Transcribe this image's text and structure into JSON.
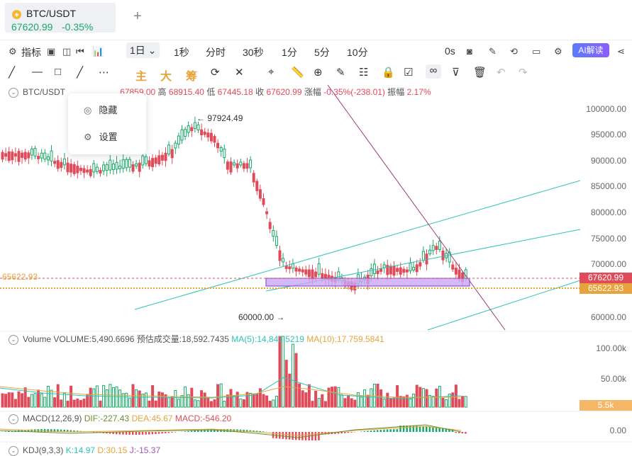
{
  "tab": {
    "symbol": "BTC/USDT",
    "price": "67620.99",
    "change": "-0.35%",
    "coin_glyph": "◈"
  },
  "toolbar": {
    "indicators": "指标",
    "interval_selected": "1日",
    "intervals": [
      "1秒",
      "分时",
      "30秒",
      "1分",
      "5分",
      "10分"
    ],
    "countdown": "0s",
    "ai_button": "AI解读"
  },
  "draw": {
    "main": "主",
    "big": "大",
    "chips": "筹"
  },
  "legend": {
    "symbol": "BTC/USDT",
    "open": "67859.00",
    "high_label": "高",
    "high": "68915.40",
    "low_label": "低",
    "low": "67445.18",
    "close_label": "收",
    "close": "67620.99",
    "chg_label": "涨幅",
    "chg": "-0.35%(-238.01)",
    "amp_label": "振幅",
    "amp": "2.17%"
  },
  "menu": {
    "hide": "隐藏",
    "settings": "设置"
  },
  "annotations": {
    "high_mark": "97924.49",
    "low_mark": "60000.00",
    "line_left": "65622.93"
  },
  "yaxis": {
    "labels": [
      "100000.00",
      "95000.00",
      "90000.00",
      "85000.00",
      "80000.00",
      "75000.00",
      "70000.00",
      "60000.00"
    ],
    "price_tag": "67620.99",
    "level_tag": "65622.93"
  },
  "volume": {
    "label": "Volume",
    "vol": "VOLUME:5,490.6696",
    "est": "预估成交量:18,592.7435",
    "ma5": "MA(5):14,843.5219",
    "ma10": "MA(10):17,759.5841",
    "axis": [
      "100.00k",
      "50.00k"
    ],
    "tag": "5.5k"
  },
  "macd": {
    "label": "MACD(12,26,9)",
    "dif": "DIF:-227.43",
    "dea": "DEA:45.67",
    "macd": "MACD:-546.20",
    "axis": "0.00"
  },
  "kdj": {
    "label": "KDJ(9,3,3)",
    "k": "K:14.97",
    "d": "D:30.15",
    "j": "J:-15.37"
  },
  "colors": {
    "up": "#1aa86a",
    "down": "#e04b5a",
    "orange": "#e8a33c",
    "purple": "#9b59b6",
    "teal": "#2ec4b6"
  }
}
